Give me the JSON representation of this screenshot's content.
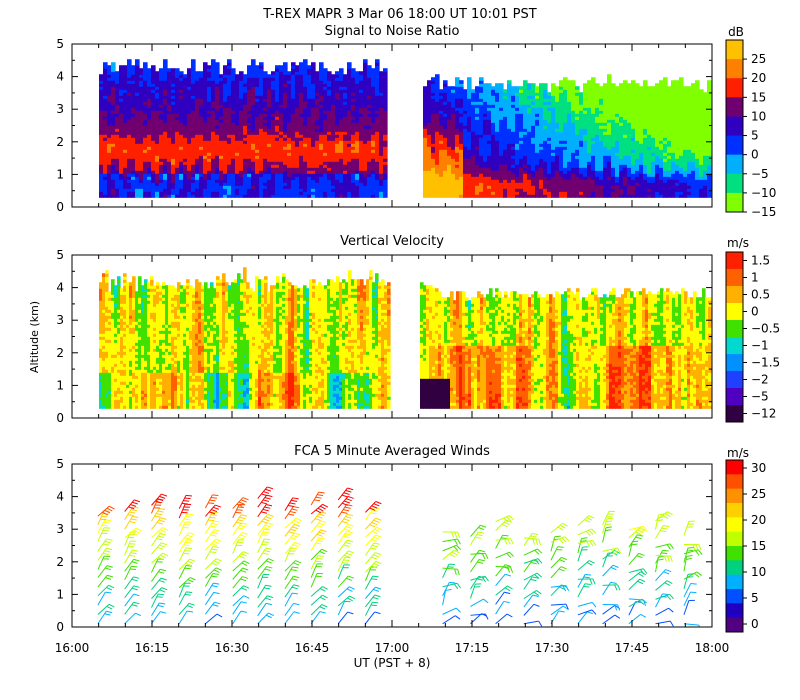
{
  "header": "T-REX   MAPR   3 Mar 06   18:00 UT   10:01   PST",
  "x_axis": {
    "ticks": [
      "16:00",
      "16:15",
      "16:30",
      "16:45",
      "17:00",
      "17:15",
      "17:30",
      "17:45",
      "18:00"
    ],
    "label": "UT  (PST + 8)"
  },
  "y_axis": {
    "label": "Altitude (km)",
    "ticks": [
      "0",
      "1",
      "2",
      "3",
      "4",
      "5"
    ]
  },
  "chart_data": [
    {
      "type": "heatmap",
      "title": "Signal to Noise Ratio",
      "unit": "dB",
      "xlim_hours": [
        16.0,
        18.0
      ],
      "ylim_km": [
        0,
        5
      ],
      "data_gap_hours": [
        16.95,
        17.1
      ],
      "colorbar": {
        "labels": [
          "25",
          "20",
          "15",
          "10",
          "5",
          "0",
          "−5",
          "−10",
          "−15"
        ],
        "colors": [
          "#ffc000",
          "#ff8000",
          "#ff2000",
          "#700070",
          "#3000c0",
          "#0030ff",
          "#00b0ff",
          "#00e080",
          "#80ff00"
        ]
      },
      "description_values": {
        "low_level_max": 20,
        "upper_min": -15
      }
    },
    {
      "type": "heatmap",
      "title": "Vertical Velocity",
      "unit": "m/s",
      "xlim_hours": [
        16.0,
        18.0
      ],
      "ylim_km": [
        0,
        5
      ],
      "data_gap_hours": [
        16.95,
        17.1
      ],
      "colorbar": {
        "labels": [
          "1.5",
          "1",
          "0.5",
          "0",
          "−0.5",
          "−1",
          "−1.5",
          "−2",
          "−5",
          "−12"
        ],
        "colors": [
          "#ff2000",
          "#ff6000",
          "#ffb000",
          "#ffff00",
          "#40e000",
          "#00d8d0",
          "#0090ff",
          "#2040ff",
          "#5000c0",
          "#300040"
        ]
      }
    },
    {
      "type": "scatter",
      "title": "FCA 5 Minute Averaged Winds",
      "unit": "m/s",
      "xlim_hours": [
        16.0,
        18.0
      ],
      "ylim_km": [
        0,
        5
      ],
      "colorbar": {
        "labels": [
          "30",
          "25",
          "20",
          "15",
          "10",
          "5",
          "0"
        ],
        "colors": [
          "#ff0000",
          "#ff5000",
          "#ff9000",
          "#ffd000",
          "#ffff00",
          "#c0ff00",
          "#40e000",
          "#00d080",
          "#00b0ff",
          "#0050ff",
          "#2000c0",
          "#500080"
        ]
      }
    }
  ]
}
